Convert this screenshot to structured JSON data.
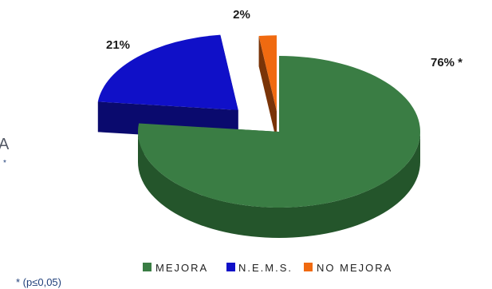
{
  "chart_data": {
    "type": "pie",
    "title": "",
    "slices": [
      {
        "name": "MEJORA",
        "value": 76,
        "label": "76% *",
        "color": "#3a7d44",
        "side_color": "#24552b"
      },
      {
        "name": "N.E.M.S.",
        "value": 21,
        "label": "21%",
        "color": "#1010c8",
        "side_color": "#0a0a6e"
      },
      {
        "name": "NO MEJORA",
        "value": 2,
        "label": "2%",
        "color": "#f06a10",
        "side_color": "#7a3408"
      }
    ],
    "legend": {
      "position": "bottom",
      "items": [
        "MEJORA",
        "N.E.M.S.",
        "NO MEJORA"
      ]
    },
    "footnote": "* (p≤0,05)",
    "edge_fragment": {
      "letter": "A",
      "star": "*"
    }
  }
}
